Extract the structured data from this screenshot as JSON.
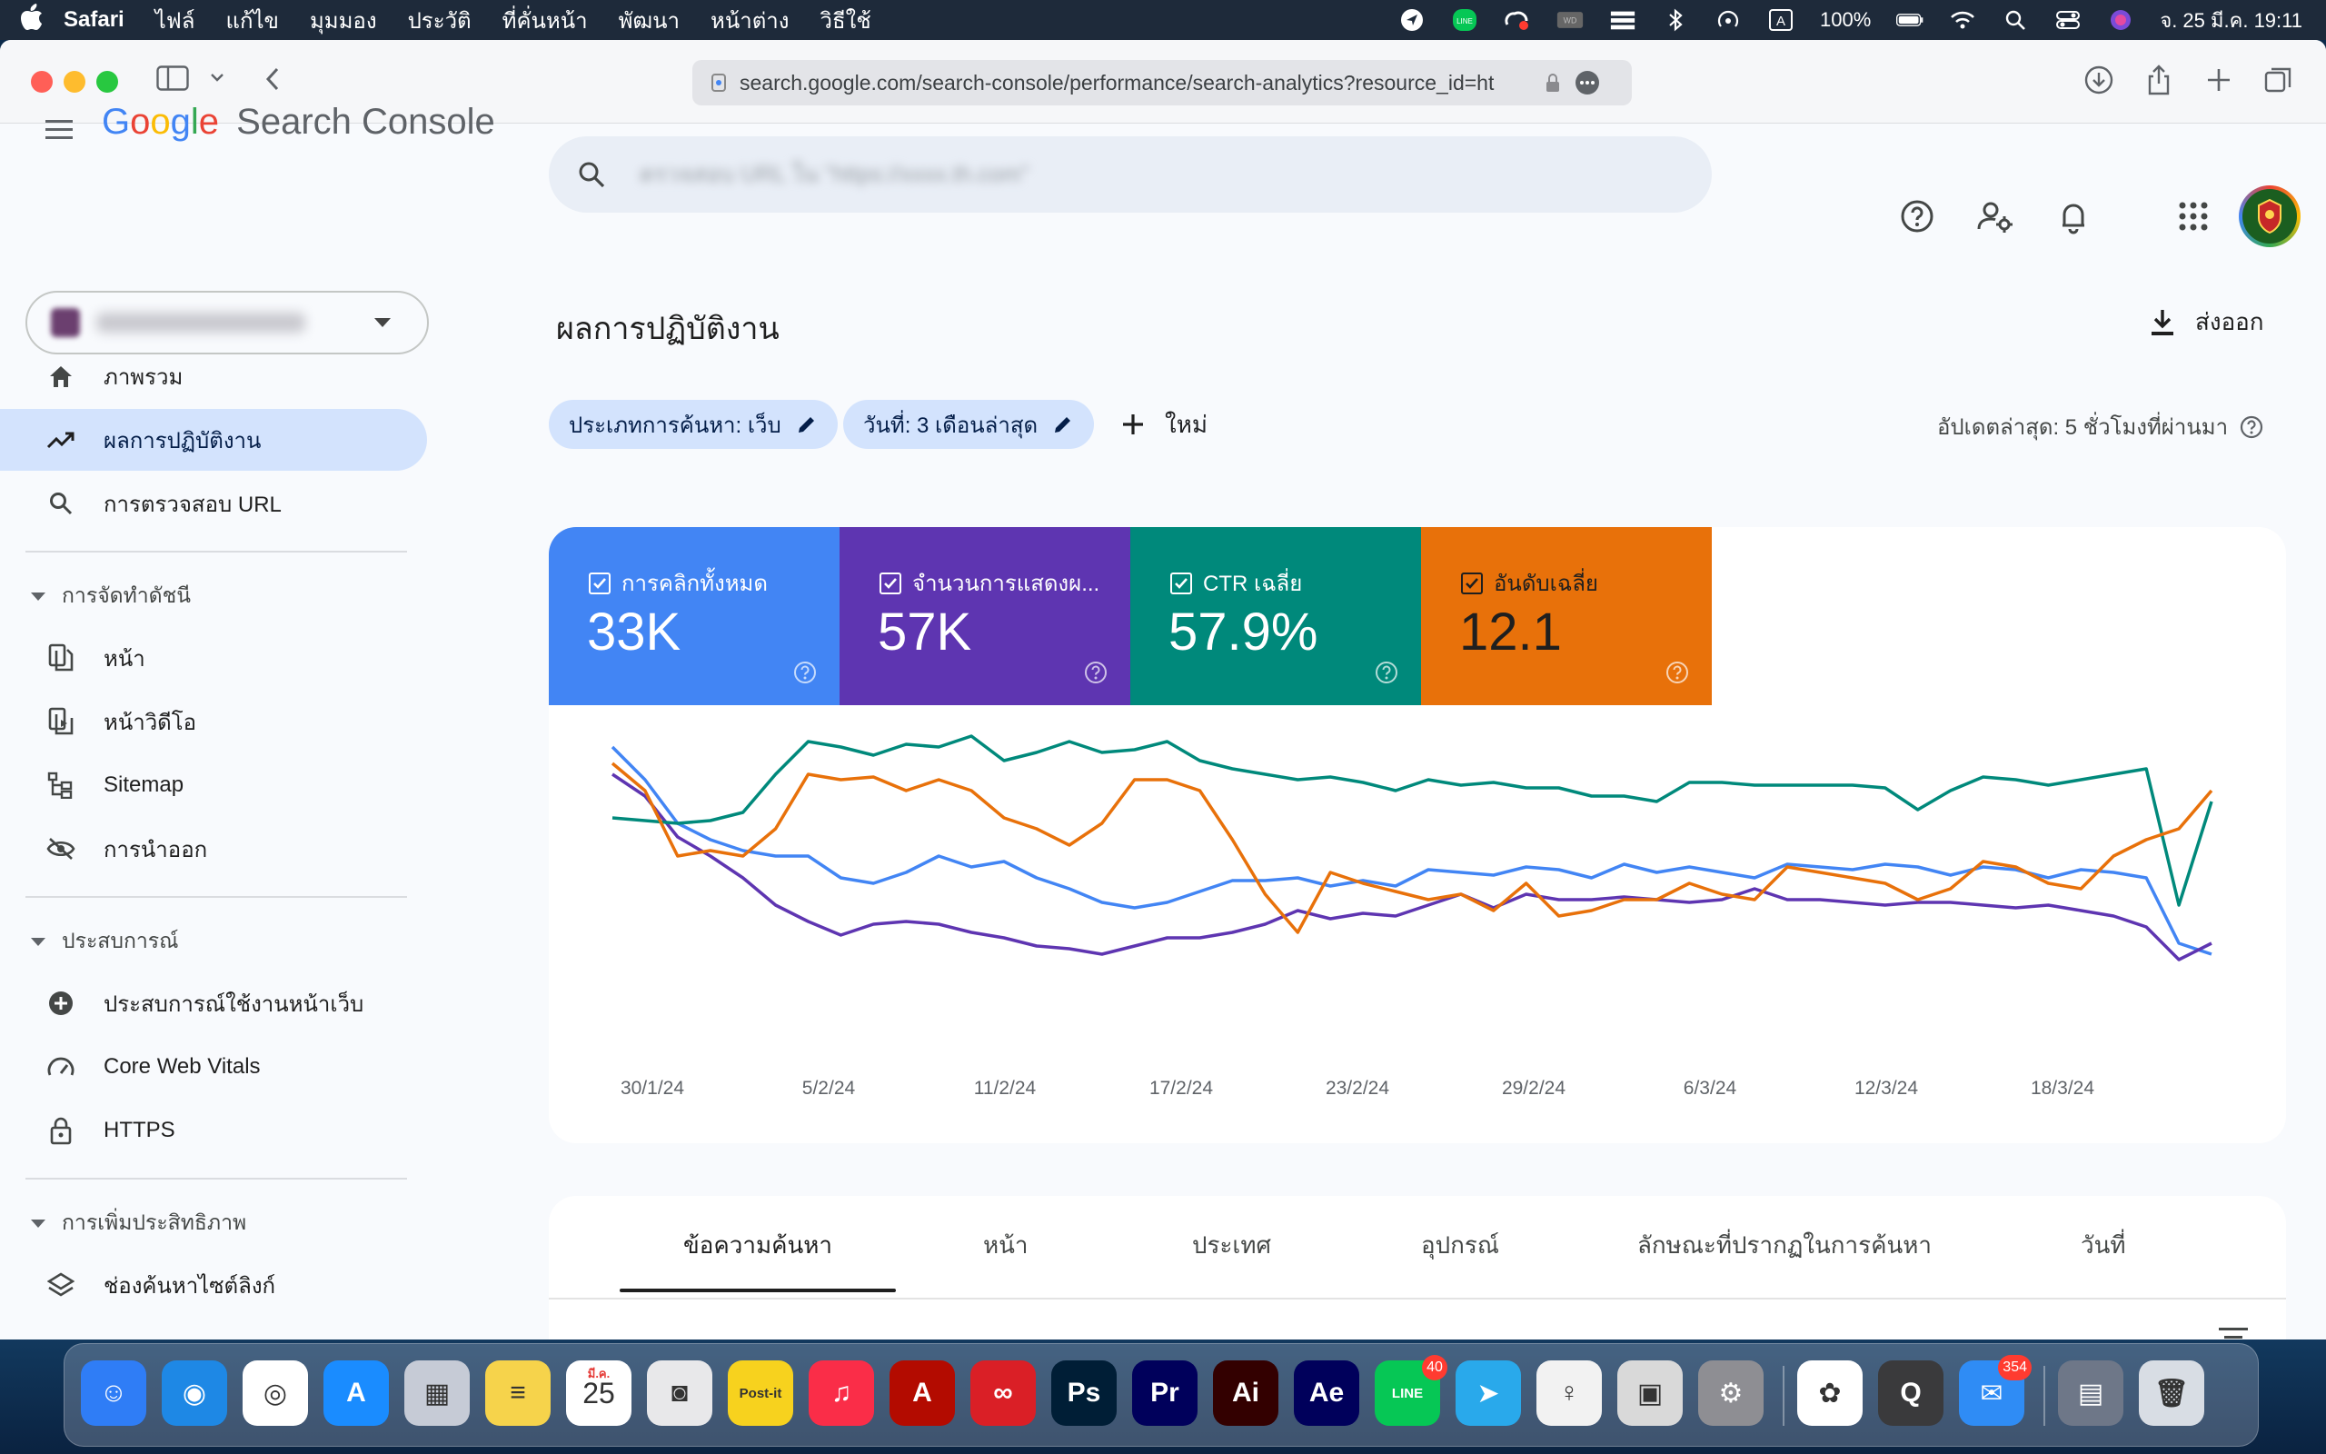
{
  "menubar": {
    "app_name": "Safari",
    "menus": [
      "ไฟล์",
      "แก้ไข",
      "มุมมอง",
      "ประวัติ",
      "ที่คั่นหน้า",
      "พัฒนา",
      "หน้าต่าง",
      "วิธีใช้"
    ],
    "battery": "100%",
    "datetime": "จ. 25 มี.ค. 19:11",
    "input_source": "A"
  },
  "browser": {
    "url": "search.google.com/search-console/performance/search-analytics?resource_id=ht"
  },
  "header": {
    "product": "Search Console",
    "search_placeholder": "ตรวจสอบ URL ใน \"https://xxxx.th.com\""
  },
  "sidebar": {
    "items": [
      {
        "label": "ภาพรวม",
        "icon": "home-icon"
      },
      {
        "label": "ผลการปฏิบัติงาน",
        "icon": "trending-up-icon",
        "active": true
      },
      {
        "label": "การตรวจสอบ URL",
        "icon": "search-icon"
      }
    ],
    "sections": [
      {
        "title": "การจัดทำดัชนี",
        "items": [
          {
            "label": "หน้า",
            "icon": "pages-icon"
          },
          {
            "label": "หน้าวิดีโอ",
            "icon": "video-pages-icon"
          },
          {
            "label": "Sitemap",
            "icon": "sitemap-icon"
          },
          {
            "label": "การนำออก",
            "icon": "removals-icon"
          }
        ]
      },
      {
        "title": "ประสบการณ์",
        "items": [
          {
            "label": "ประสบการณ์ใช้งานหน้าเว็บ",
            "icon": "page-experience-icon"
          },
          {
            "label": "Core Web Vitals",
            "icon": "speed-icon"
          },
          {
            "label": "HTTPS",
            "icon": "lock-icon"
          }
        ]
      },
      {
        "title": "การเพิ่มประสิทธิภาพ",
        "items": [
          {
            "label": "ช่องค้นหาไซต์ลิงก์",
            "icon": "layers-icon"
          }
        ]
      }
    ]
  },
  "main": {
    "title": "ผลการปฏิบัติงาน",
    "export_label": "ส่งออก",
    "filters": [
      "ประเภทการค้นหา: เว็บ",
      "วันที่: 3 เดือนล่าสุด"
    ],
    "new_label": "ใหม่",
    "last_updated": "อัปเดตล่าสุด: 5 ชั่วโมงที่ผ่านมา",
    "metrics": [
      {
        "label": "การคลิกทั้งหมด",
        "value": "33K",
        "color": "#4285f4",
        "checked": true
      },
      {
        "label": "จำนวนการแสดงผ...",
        "value": "57K",
        "color": "#5e35b1",
        "checked": true
      },
      {
        "label": "CTR เฉลี่ย",
        "value": "57.9%",
        "color": "#00897b",
        "checked": true
      },
      {
        "label": "อันดับเฉลี่ย",
        "value": "12.1",
        "color": "#e8710a",
        "checked": true
      }
    ],
    "tabs": [
      "ข้อความค้นหา",
      "หน้า",
      "ประเทศ",
      "อุปกรณ์",
      "ลักษณะที่ปรากฏในการค้นหา",
      "วันที่"
    ]
  },
  "chart_data": {
    "type": "line",
    "x_tick_labels": [
      "30/1/24",
      "5/2/24",
      "11/2/24",
      "17/2/24",
      "23/2/24",
      "29/2/24",
      "6/3/24",
      "12/3/24",
      "18/3/24"
    ],
    "series": [
      {
        "name": "การคลิกทั้งหมด",
        "color": "#4285f4",
        "values": [
          0.98,
          0.86,
          0.7,
          0.64,
          0.6,
          0.58,
          0.58,
          0.5,
          0.48,
          0.52,
          0.58,
          0.54,
          0.56,
          0.5,
          0.46,
          0.41,
          0.39,
          0.41,
          0.45,
          0.49,
          0.49,
          0.5,
          0.47,
          0.49,
          0.47,
          0.53,
          0.52,
          0.51,
          0.54,
          0.53,
          0.5,
          0.55,
          0.52,
          0.54,
          0.52,
          0.5,
          0.55,
          0.54,
          0.53,
          0.55,
          0.54,
          0.51,
          0.54,
          0.53,
          0.5,
          0.53,
          0.52,
          0.5,
          0.26,
          0.22
        ]
      },
      {
        "name": "จำนวนการแสดงผ...",
        "color": "#5e35b1",
        "values": [
          0.88,
          0.8,
          0.65,
          0.58,
          0.5,
          0.4,
          0.34,
          0.29,
          0.33,
          0.34,
          0.33,
          0.3,
          0.28,
          0.25,
          0.24,
          0.22,
          0.25,
          0.28,
          0.28,
          0.3,
          0.33,
          0.38,
          0.35,
          0.37,
          0.36,
          0.4,
          0.44,
          0.39,
          0.44,
          0.42,
          0.42,
          0.43,
          0.42,
          0.41,
          0.42,
          0.46,
          0.42,
          0.42,
          0.41,
          0.4,
          0.41,
          0.41,
          0.4,
          0.39,
          0.4,
          0.38,
          0.36,
          0.32,
          0.2,
          0.26
        ]
      },
      {
        "name": "CTR เฉลี่ย",
        "color": "#00897b",
        "values": [
          0.72,
          0.71,
          0.7,
          0.71,
          0.74,
          0.88,
          1.0,
          0.98,
          0.95,
          0.99,
          0.98,
          1.02,
          0.93,
          0.96,
          1.0,
          0.96,
          0.97,
          1.0,
          0.93,
          0.9,
          0.88,
          0.86,
          0.87,
          0.85,
          0.82,
          0.86,
          0.84,
          0.85,
          0.83,
          0.83,
          0.8,
          0.8,
          0.78,
          0.85,
          0.85,
          0.84,
          0.84,
          0.84,
          0.84,
          0.83,
          0.75,
          0.82,
          0.87,
          0.86,
          0.84,
          0.86,
          0.88,
          0.9,
          0.4,
          0.78
        ]
      },
      {
        "name": "อันดับเฉลี่ย",
        "color": "#e8710a",
        "values": [
          0.92,
          0.82,
          0.58,
          0.6,
          0.58,
          0.68,
          0.88,
          0.86,
          0.87,
          0.82,
          0.86,
          0.82,
          0.72,
          0.68,
          0.62,
          0.7,
          0.86,
          0.86,
          0.82,
          0.64,
          0.44,
          0.3,
          0.52,
          0.48,
          0.45,
          0.42,
          0.44,
          0.38,
          0.48,
          0.36,
          0.38,
          0.42,
          0.42,
          0.48,
          0.44,
          0.42,
          0.54,
          0.52,
          0.5,
          0.48,
          0.42,
          0.46,
          0.56,
          0.54,
          0.48,
          0.46,
          0.58,
          0.64,
          0.68,
          0.82
        ]
      }
    ],
    "y_scale": "normalized per series",
    "grid": false,
    "legend": "metric tiles above chart"
  },
  "dock": {
    "apps": [
      {
        "name": "Finder",
        "color": "#2f7df6",
        "glyph": "☺"
      },
      {
        "name": "Safari",
        "color": "#1e88e5",
        "glyph": "◉"
      },
      {
        "name": "Chrome",
        "color": "#ffffff",
        "glyph": "◎"
      },
      {
        "name": "App Store",
        "color": "#1a8cff",
        "glyph": "A"
      },
      {
        "name": "Launchpad",
        "color": "#c6cbd6",
        "glyph": "▦"
      },
      {
        "name": "Notes",
        "color": "#f6d34b",
        "glyph": "≡"
      },
      {
        "name": "Calendar",
        "color": "#ffffff",
        "glyph": "25"
      },
      {
        "name": "Screenshot",
        "color": "#e8e8ea",
        "glyph": "◙"
      },
      {
        "name": "Post-it",
        "color": "#f7d21e",
        "glyph": "Post-it"
      },
      {
        "name": "Music",
        "color": "#fa2d48",
        "glyph": "♫"
      },
      {
        "name": "Acrobat",
        "color": "#b30b00",
        "glyph": "A"
      },
      {
        "name": "Creative Cloud",
        "color": "#da1f26",
        "glyph": "∞"
      },
      {
        "name": "Photoshop",
        "color": "#001e36",
        "glyph": "Ps"
      },
      {
        "name": "Premiere",
        "color": "#00005b",
        "glyph": "Pr"
      },
      {
        "name": "Illustrator",
        "color": "#330000",
        "glyph": "Ai"
      },
      {
        "name": "After Effects",
        "color": "#00005b",
        "glyph": "Ae"
      },
      {
        "name": "LINE",
        "color": "#06c755",
        "glyph": "LINE",
        "badge": "40"
      },
      {
        "name": "Telegram",
        "color": "#29a9eb",
        "glyph": "➤"
      },
      {
        "name": "Voice",
        "color": "#f2f2f2",
        "glyph": "♀"
      },
      {
        "name": "Photo Booth",
        "color": "#d9d9d9",
        "glyph": "▣"
      },
      {
        "name": "System Settings",
        "color": "#8e8e93",
        "glyph": "⚙"
      },
      {
        "name": "Photos",
        "color": "#ffffff",
        "glyph": "✿"
      },
      {
        "name": "QuickTime",
        "color": "#3a3a3c",
        "glyph": "Q"
      },
      {
        "name": "Mail",
        "color": "#2f8cf5",
        "glyph": "✉",
        "badge": "354"
      },
      {
        "name": "Downloads",
        "color": "#6e7788",
        "glyph": "▤"
      },
      {
        "name": "Trash",
        "color": "#d8dde4",
        "glyph": "🗑"
      }
    ],
    "calendar_month": "มี.ค."
  }
}
